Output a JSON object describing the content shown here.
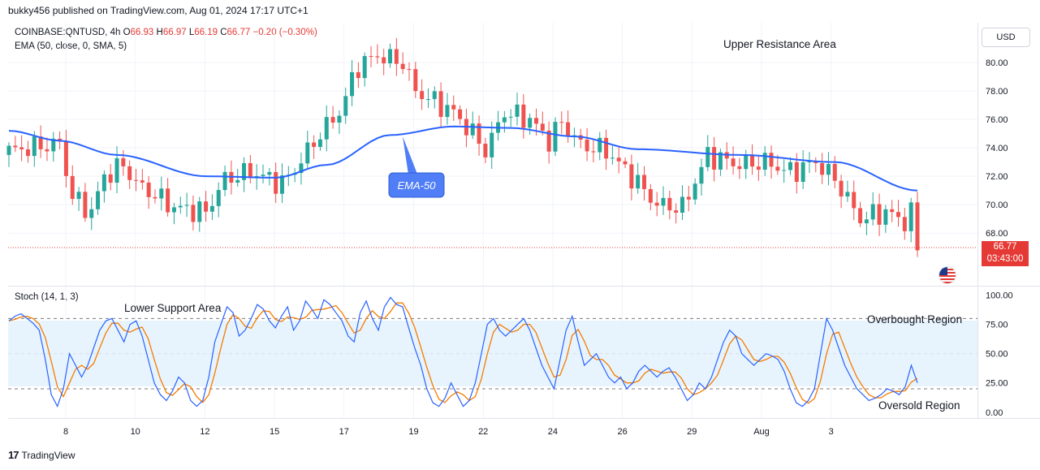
{
  "header": {
    "published": "bukky456 published on TradingView.com, Aug 01, 2024 17:17 UTC+1"
  },
  "symbol_line": {
    "symbol": "COINBASE:QNTUSD, 4h",
    "open_label": "O",
    "open": "66.93",
    "high_label": "H",
    "high": "66.97",
    "low_label": "L",
    "low": "66.19",
    "close_label": "C",
    "close": "66.77",
    "change": "−0.20 (−0.30%)"
  },
  "ema_indicator_label": "EMA (50, close, 0, SMA, 5)",
  "stoch_indicator_label": "Stoch (14, 1, 3)",
  "currency_button": "USD",
  "last_price": {
    "value": "66.77",
    "countdown": "03:43:00"
  },
  "annotations": {
    "upper_resistance": "Upper Resistance Area",
    "lower_support": "Lower Support Area",
    "ema50_callout": "EMA-50",
    "overbought": "Overbought Region",
    "oversold": "Oversold Region"
  },
  "footer": {
    "brand": "TradingView"
  },
  "colors": {
    "up": "#26a69a",
    "down": "#ef5350",
    "ema": "#2962ff",
    "stoch_k": "#2962ff",
    "stoch_d": "#f57c00",
    "band": "#e3f2fd",
    "last_price": "#e53935"
  },
  "chart_data": [
    {
      "type": "candlestick",
      "title": "COINBASE:QNTUSD, 4h",
      "x_ticks": [
        "8",
        "10",
        "12",
        "15",
        "17",
        "19",
        "22",
        "24",
        "26",
        "29",
        "Aug",
        "3"
      ],
      "y_ticks": [
        "80.00",
        "78.00",
        "76.00",
        "74.00",
        "72.00",
        "70.00",
        "68.00"
      ],
      "ylim": [
        64.3,
        82.8
      ],
      "last_price": 66.77,
      "ema50_anchors": [
        [
          0,
          75.2
        ],
        [
          8,
          74.5
        ],
        [
          17,
          73.5
        ],
        [
          31,
          72.0
        ],
        [
          42,
          71.9
        ],
        [
          50,
          72.8
        ],
        [
          60,
          74.9
        ],
        [
          70,
          75.5
        ],
        [
          79,
          75.4
        ],
        [
          89,
          74.8
        ],
        [
          99,
          73.9
        ],
        [
          115,
          73.5
        ],
        [
          130,
          73.0
        ],
        [
          143,
          71.0
        ]
      ]
    },
    {
      "type": "line",
      "title": "Stoch (14, 1, 3)",
      "y_ticks": [
        "100.00",
        "75.00",
        "50.00",
        "25.00",
        "0.00"
      ],
      "ylim": [
        -5,
        108
      ],
      "overbought": 80,
      "oversold": 20,
      "k_values": [
        78,
        82,
        84,
        80,
        76,
        70,
        45,
        15,
        5,
        20,
        50,
        40,
        30,
        40,
        55,
        70,
        78,
        80,
        70,
        60,
        75,
        78,
        65,
        45,
        25,
        15,
        10,
        18,
        30,
        25,
        10,
        5,
        10,
        30,
        60,
        75,
        90,
        85,
        65,
        70,
        80,
        92,
        88,
        78,
        72,
        82,
        90,
        70,
        78,
        95,
        88,
        80,
        96,
        92,
        85,
        78,
        65,
        60,
        85,
        95,
        80,
        70,
        90,
        98,
        92,
        90,
        72,
        55,
        40,
        20,
        8,
        5,
        12,
        25,
        15,
        5,
        10,
        25,
        50,
        75,
        80,
        70,
        65,
        70,
        75,
        80,
        70,
        55,
        40,
        30,
        20,
        45,
        70,
        82,
        60,
        40,
        45,
        50,
        40,
        30,
        25,
        30,
        20,
        25,
        35,
        40,
        35,
        30,
        35,
        38,
        30,
        20,
        10,
        15,
        25,
        20,
        30,
        45,
        60,
        70,
        65,
        50,
        45,
        40,
        45,
        50,
        48,
        45,
        35,
        20,
        8,
        5,
        10,
        20,
        50,
        80,
        70,
        55,
        40,
        30,
        20,
        15,
        10,
        12,
        15,
        20,
        18,
        15,
        22,
        40,
        25
      ]
    }
  ]
}
